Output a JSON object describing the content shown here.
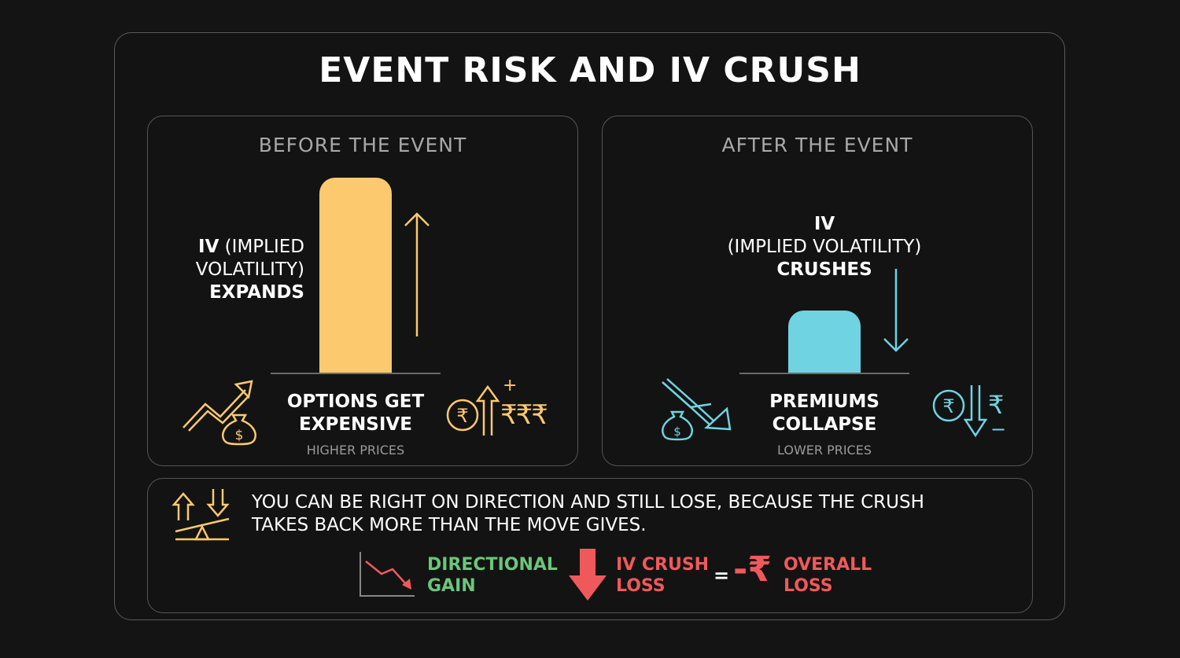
{
  "title": "EVENT RISK AND IV CRUSH",
  "colors": {
    "background": "#141414",
    "yellow": "#fcc96e",
    "cyan": "#6fd3e2",
    "green": "#6cc57a",
    "red": "#f0595b",
    "gray": "#a8a8a8"
  },
  "before": {
    "heading": "BEFORE THE EVENT",
    "label_line1_bold": "IV",
    "label_line1_rest": " (IMPLIED",
    "label_line2": "VOLATILITY)",
    "label_line3": "EXPANDS",
    "caption_line1": "OPTIONS GET",
    "caption_line2": "EXPENSIVE",
    "subcaption": "HIGHER PRICES",
    "rupee_symbols": "₹₹₹",
    "plus_sign": "+",
    "icons": [
      "rising-trend-money-bag-icon",
      "rupee-up-arrow-icon"
    ]
  },
  "after": {
    "heading": "AFTER THE EVENT",
    "label_line1": "IV",
    "label_line2": "(IMPLIED VOLATILITY)",
    "label_line3": "CRUSHES",
    "caption_line1": "PREMIUMS",
    "caption_line2": "COLLAPSE",
    "subcaption": "LOWER PRICES",
    "rupee_symbol": "₹",
    "minus_sign": "−",
    "icons": [
      "falling-trend-money-bag-icon",
      "rupee-down-arrow-icon"
    ]
  },
  "iv_levels": {
    "before": 1.0,
    "after": 0.32
  },
  "bottom": {
    "message_line1": "YOU CAN BE RIGHT ON DIRECTION AND STILL LOSE, BECAUSE THE CRUSH",
    "message_line2": "TAKES BACK MORE THAN THE MOVE GIVES.",
    "equation": {
      "term1_line1": "DIRECTIONAL",
      "term1_line2": "GAIN",
      "term2_line1": "IV CRUSH",
      "term2_line2": "LOSS",
      "equals": "=",
      "minus": "-",
      "rupee": "₹",
      "result_line1": "OVERALL",
      "result_line2": "LOSS"
    },
    "icons": [
      "balance-scale-icon",
      "down-trend-chart-icon",
      "red-down-arrow-icon"
    ]
  }
}
